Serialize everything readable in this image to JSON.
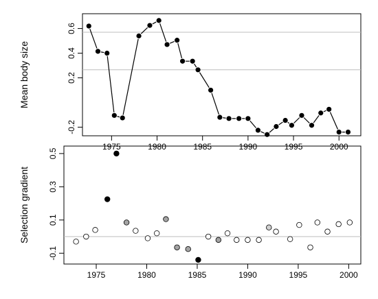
{
  "chart_data": [
    {
      "type": "line",
      "ylabel": "Mean body size",
      "x_ticks": [
        "1975",
        "1980",
        "1985",
        "1990",
        "1995",
        "2000"
      ],
      "y_ticks": [
        "-0.2",
        "0.2",
        "0.4",
        "0.6"
      ],
      "y_tick_values": [
        -0.2,
        0.2,
        0.4,
        0.6
      ],
      "xlim": [
        1971.8,
        2002.4
      ],
      "ylim": [
        -0.27,
        0.72
      ],
      "reference_lines": [
        0.57,
        0.265
      ],
      "grid": false,
      "x": [
        1972.5,
        1973.5,
        1974.5,
        1975.3,
        1976.2,
        1978,
        1979.2,
        1980.2,
        1981.1,
        1982.2,
        1982.8,
        1983.9,
        1984.5,
        1985.9,
        1986.9,
        1987.9,
        1989,
        1990,
        1991.1,
        1992.1,
        1993.1,
        1994.1,
        1994.8,
        1995.9,
        1997,
        1998,
        1998.9,
        2000,
        2001
      ],
      "y": [
        0.62,
        0.415,
        0.4,
        -0.105,
        -0.125,
        0.54,
        0.625,
        0.665,
        0.47,
        0.505,
        0.335,
        0.335,
        0.265,
        0.1,
        -0.12,
        -0.13,
        -0.13,
        -0.13,
        -0.225,
        -0.26,
        -0.195,
        -0.145,
        -0.185,
        -0.105,
        -0.185,
        -0.085,
        -0.055,
        -0.24,
        -0.24
      ]
    },
    {
      "type": "scatter",
      "ylabel": "Selection gradient",
      "x_ticks": [
        "1975",
        "1980",
        "1985",
        "1990",
        "1995",
        "2000"
      ],
      "y_ticks": [
        "-0.1",
        "0.1",
        "0.3",
        "0.5"
      ],
      "y_tick_values": [
        -0.1,
        0.1,
        0.3,
        0.5
      ],
      "xlim": [
        1971.8,
        2001.2
      ],
      "ylim": [
        -0.165,
        0.545
      ],
      "reference_lines": [
        0
      ],
      "grid": false,
      "fill_levels": {
        "open": "#ffffff",
        "light": "#d0d0d0",
        "mid": "#a4a4a4",
        "dark": "#000000"
      },
      "points": [
        {
          "x": 1973,
          "y": -0.03,
          "fill": "open"
        },
        {
          "x": 1974,
          "y": 0.0,
          "fill": "open"
        },
        {
          "x": 1974.9,
          "y": 0.04,
          "fill": "open"
        },
        {
          "x": 1976.1,
          "y": 0.225,
          "fill": "dark"
        },
        {
          "x": 1977,
          "y": 0.5,
          "fill": "dark"
        },
        {
          "x": 1978,
          "y": 0.085,
          "fill": "mid"
        },
        {
          "x": 1978.9,
          "y": 0.035,
          "fill": "open"
        },
        {
          "x": 1980.1,
          "y": -0.01,
          "fill": "open"
        },
        {
          "x": 1981,
          "y": 0.02,
          "fill": "open"
        },
        {
          "x": 1981.9,
          "y": 0.105,
          "fill": "mid"
        },
        {
          "x": 1983,
          "y": -0.065,
          "fill": "mid"
        },
        {
          "x": 1984.1,
          "y": -0.075,
          "fill": "mid"
        },
        {
          "x": 1985.1,
          "y": -0.14,
          "fill": "dark"
        },
        {
          "x": 1986.1,
          "y": 0.0,
          "fill": "open"
        },
        {
          "x": 1987.1,
          "y": -0.02,
          "fill": "mid"
        },
        {
          "x": 1988,
          "y": 0.02,
          "fill": "open"
        },
        {
          "x": 1988.9,
          "y": -0.02,
          "fill": "open"
        },
        {
          "x": 1990,
          "y": -0.02,
          "fill": "open"
        },
        {
          "x": 1991.1,
          "y": -0.02,
          "fill": "open"
        },
        {
          "x": 1992.1,
          "y": 0.055,
          "fill": "light"
        },
        {
          "x": 1992.8,
          "y": 0.03,
          "fill": "open"
        },
        {
          "x": 1994.2,
          "y": -0.015,
          "fill": "open"
        },
        {
          "x": 1995.1,
          "y": 0.07,
          "fill": "open"
        },
        {
          "x": 1996.2,
          "y": -0.065,
          "fill": "open"
        },
        {
          "x": 1996.9,
          "y": 0.085,
          "fill": "open"
        },
        {
          "x": 1997.9,
          "y": 0.03,
          "fill": "open"
        },
        {
          "x": 1999,
          "y": 0.075,
          "fill": "open"
        },
        {
          "x": 2000.1,
          "y": 0.085,
          "fill": "open"
        }
      ]
    }
  ]
}
